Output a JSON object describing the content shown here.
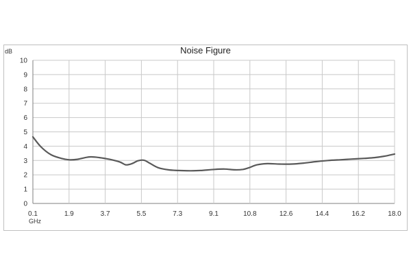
{
  "chart_data": {
    "type": "line",
    "title": "Noise Figure",
    "ylabel": "dB",
    "xlabel": "GHz",
    "xlim": [
      0.1,
      18.0
    ],
    "ylim": [
      0,
      10
    ],
    "yticks": [
      "0",
      "1",
      "2",
      "3",
      "4",
      "5",
      "6",
      "7",
      "8",
      "9",
      "10"
    ],
    "xticks": [
      "0.1",
      "1.9",
      "3.7",
      "5.5",
      "7.3",
      "9.1",
      "10.8",
      "12.6",
      "14.4",
      "16.2",
      "18.0"
    ],
    "grid": true,
    "line_color": "#595959",
    "series": [
      {
        "x": [
          0.1,
          0.5,
          1.0,
          1.5,
          1.9,
          2.3,
          2.9,
          3.4,
          3.9,
          4.4,
          4.7,
          5.0,
          5.3,
          5.6,
          5.9,
          6.3,
          6.8,
          7.3,
          7.9,
          8.4,
          9.1,
          9.6,
          10.1,
          10.5,
          10.8,
          11.2,
          11.7,
          12.3,
          12.9,
          13.5,
          14.1,
          14.7,
          15.3,
          15.9,
          16.5,
          17.0,
          17.5,
          18.0
        ],
        "y": [
          4.65,
          3.95,
          3.4,
          3.15,
          3.05,
          3.08,
          3.25,
          3.2,
          3.08,
          2.9,
          2.7,
          2.78,
          2.98,
          3.02,
          2.8,
          2.5,
          2.35,
          2.3,
          2.28,
          2.3,
          2.38,
          2.4,
          2.35,
          2.38,
          2.5,
          2.7,
          2.78,
          2.75,
          2.75,
          2.82,
          2.92,
          3.0,
          3.05,
          3.1,
          3.15,
          3.2,
          3.3,
          3.45
        ]
      }
    ]
  }
}
